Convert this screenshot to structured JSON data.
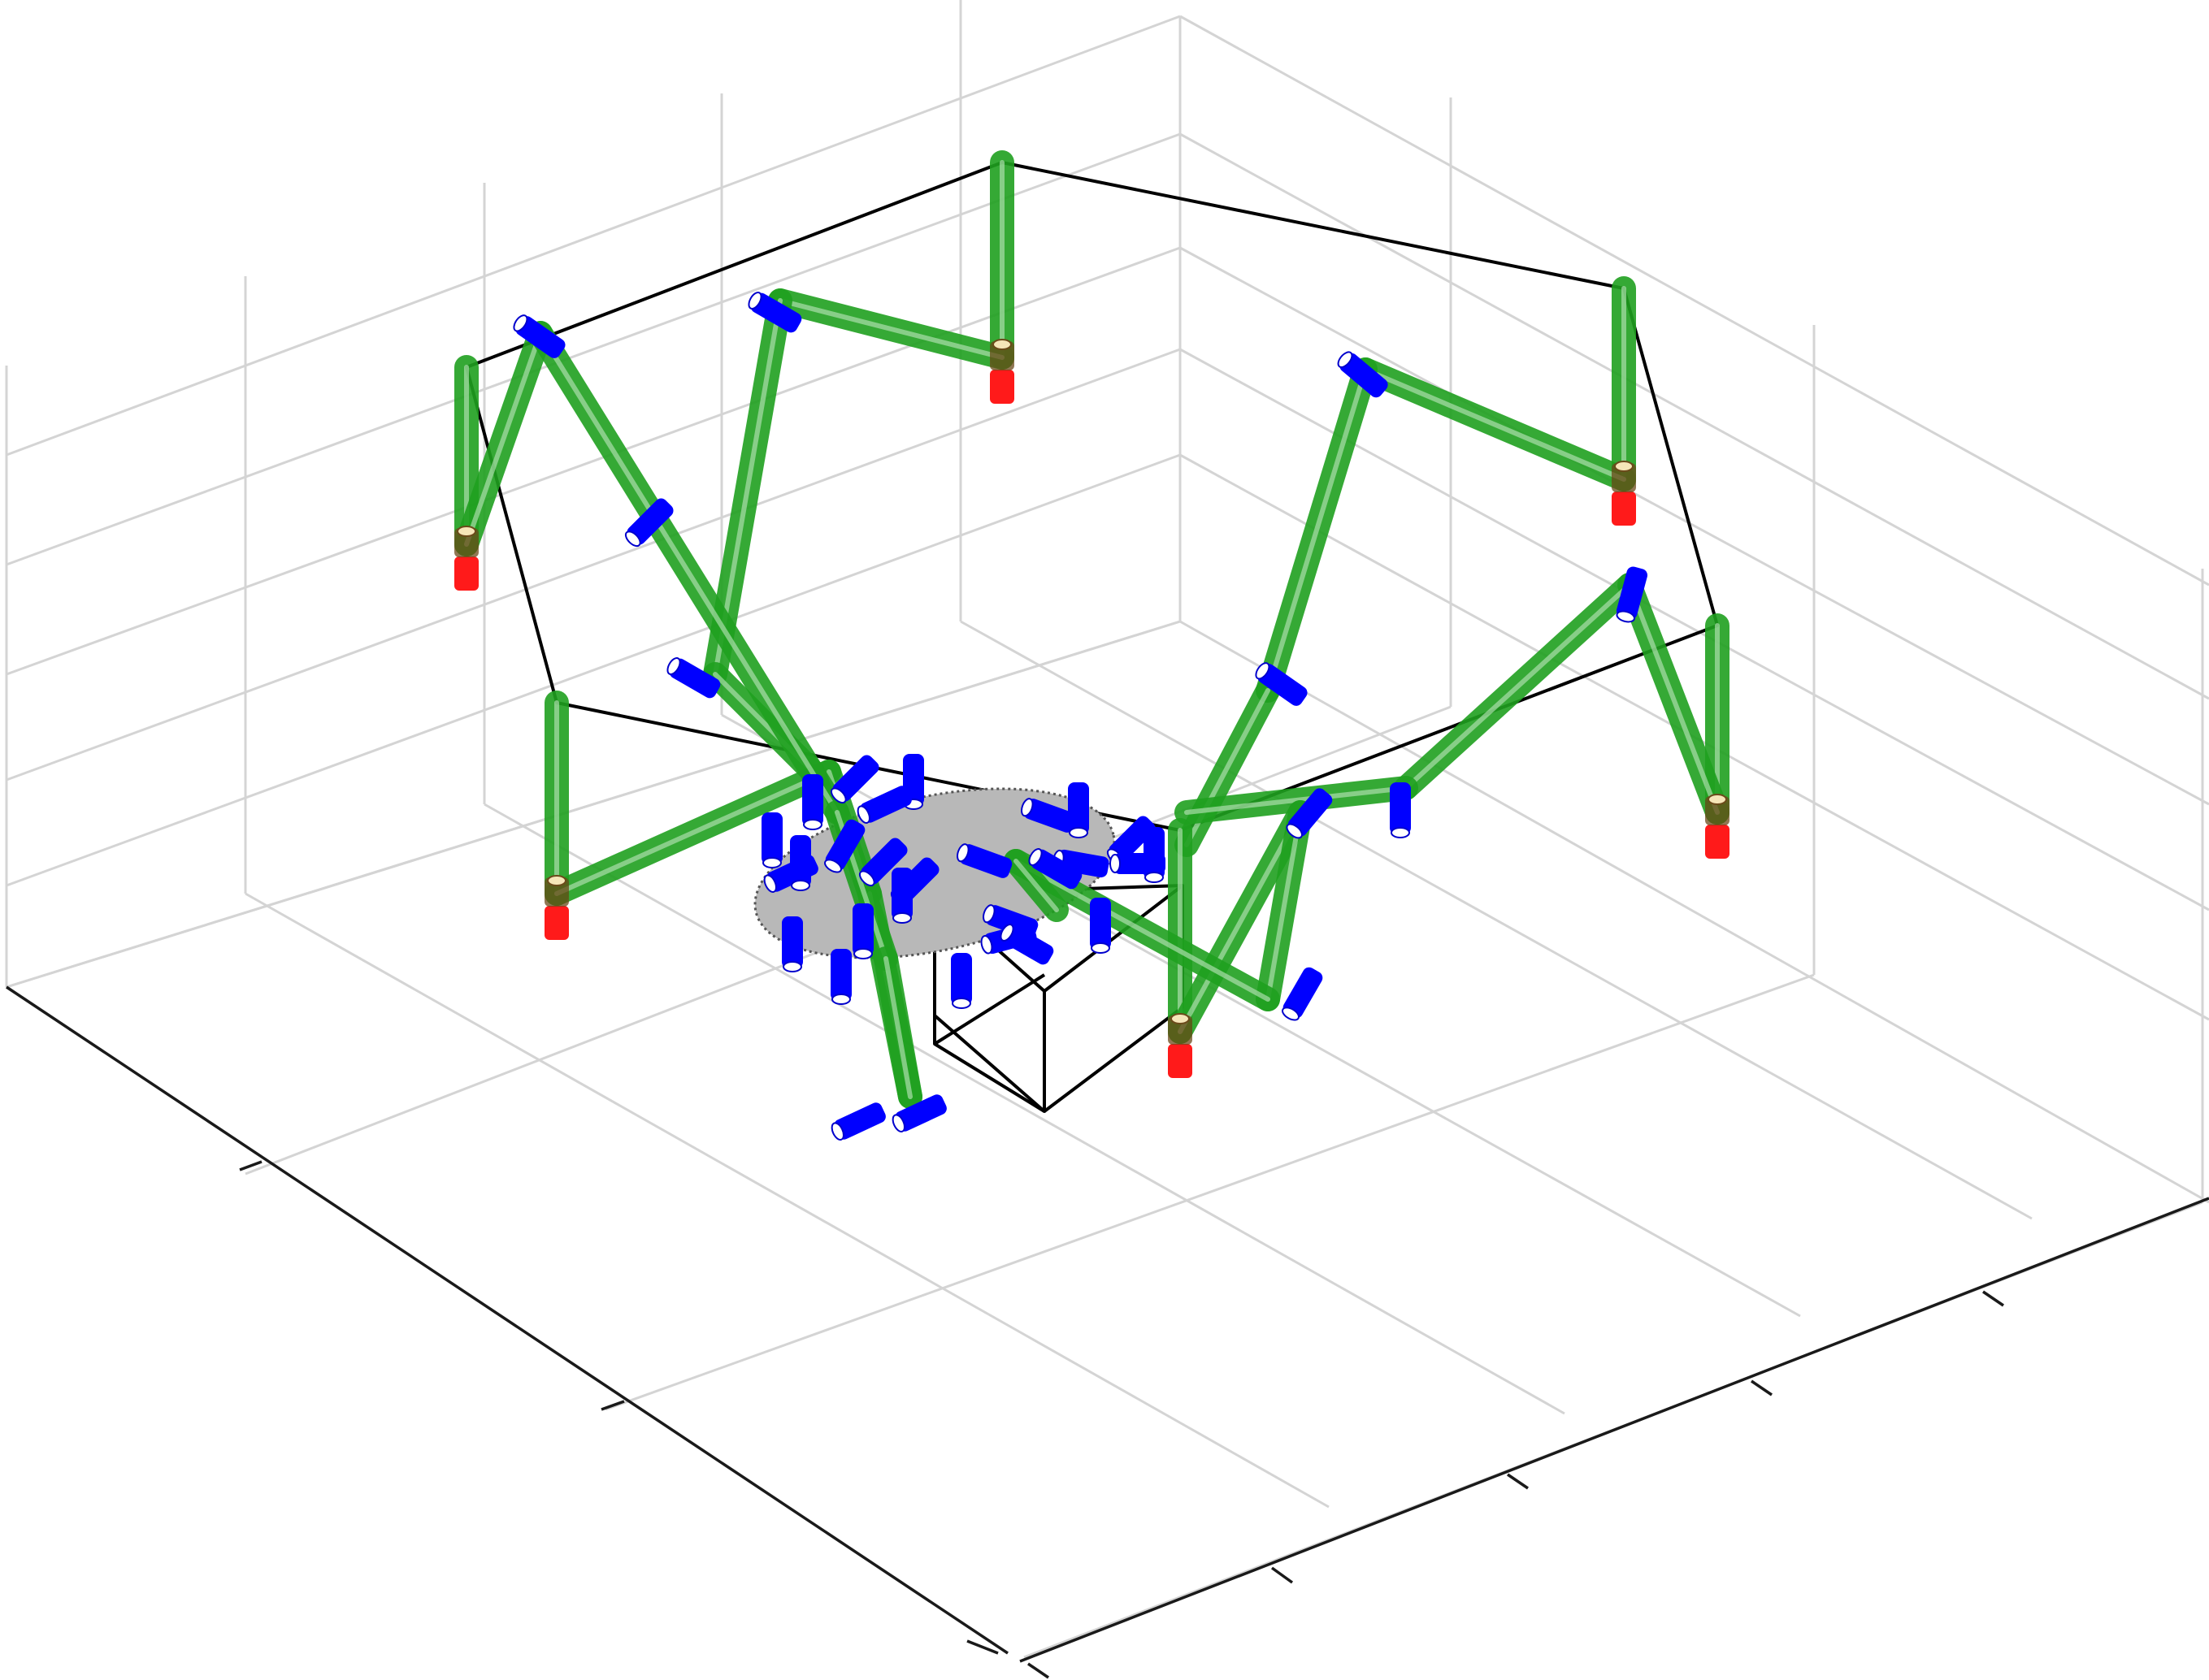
{
  "scene": {
    "kind": "3D view of a parallel mechanism with green links, blue revolute joints and red base actuators",
    "colors": {
      "link": "#1fa01f",
      "joint": "#0000ff",
      "actuator": "#ff1a1a",
      "platform": "#b8b8b8",
      "outline": "#000000",
      "grid": "#d4d4d4"
    },
    "grid": true,
    "tick_labels_visible": false,
    "counts": {
      "legs": 6,
      "joints": 39,
      "actuators": 6
    }
  }
}
